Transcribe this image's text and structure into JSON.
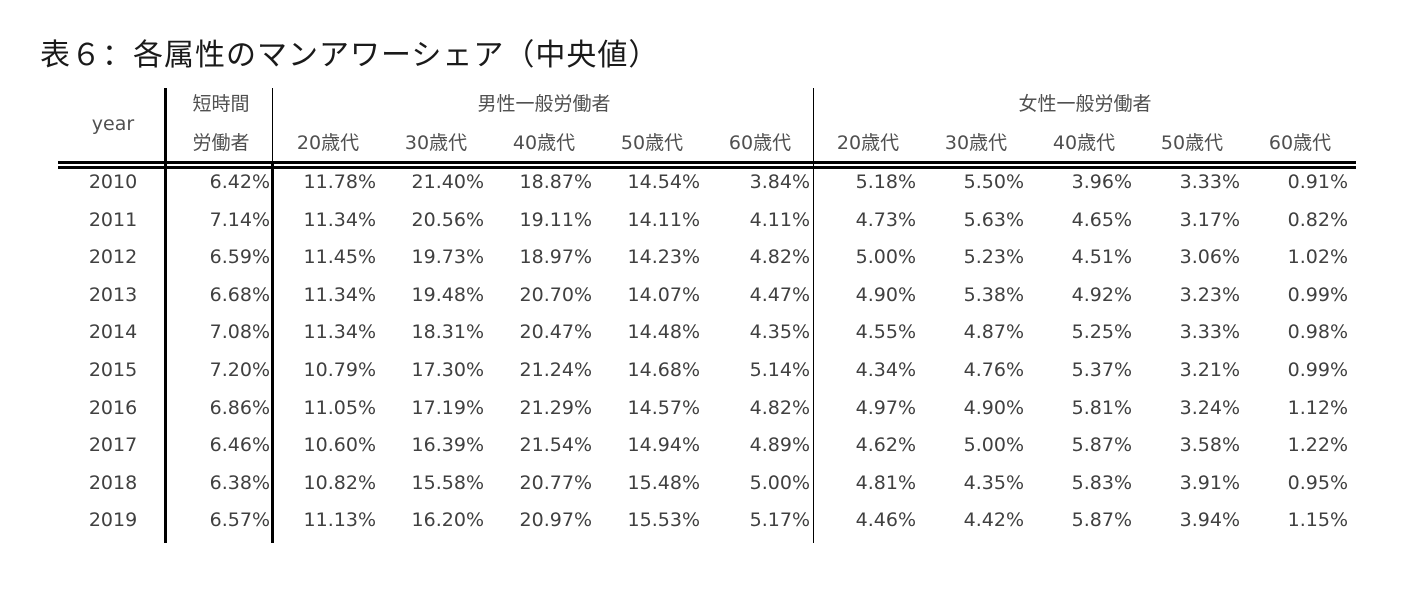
{
  "title": "表６：各属性のマンアワーシェア（中央値）",
  "table": {
    "header": {
      "year": "year",
      "short_time_line1": "短時間",
      "short_time_line2": "労働者",
      "male_group": "男性一般労働者",
      "female_group": "女性一般労働者",
      "age_columns": [
        "20歳代",
        "30歳代",
        "40歳代",
        "50歳代",
        "60歳代"
      ]
    },
    "rows": [
      {
        "year": "2010",
        "short": "6.42%",
        "male": [
          "11.78%",
          "21.40%",
          "18.87%",
          "14.54%",
          "3.84%"
        ],
        "female": [
          "5.18%",
          "5.50%",
          "3.96%",
          "3.33%",
          "0.91%"
        ]
      },
      {
        "year": "2011",
        "short": "7.14%",
        "male": [
          "11.34%",
          "20.56%",
          "19.11%",
          "14.11%",
          "4.11%"
        ],
        "female": [
          "4.73%",
          "5.63%",
          "4.65%",
          "3.17%",
          "0.82%"
        ]
      },
      {
        "year": "2012",
        "short": "6.59%",
        "male": [
          "11.45%",
          "19.73%",
          "18.97%",
          "14.23%",
          "4.82%"
        ],
        "female": [
          "5.00%",
          "5.23%",
          "4.51%",
          "3.06%",
          "1.02%"
        ]
      },
      {
        "year": "2013",
        "short": "6.68%",
        "male": [
          "11.34%",
          "19.48%",
          "20.70%",
          "14.07%",
          "4.47%"
        ],
        "female": [
          "4.90%",
          "5.38%",
          "4.92%",
          "3.23%",
          "0.99%"
        ]
      },
      {
        "year": "2014",
        "short": "7.08%",
        "male": [
          "11.34%",
          "18.31%",
          "20.47%",
          "14.48%",
          "4.35%"
        ],
        "female": [
          "4.55%",
          "4.87%",
          "5.25%",
          "3.33%",
          "0.98%"
        ]
      },
      {
        "year": "2015",
        "short": "7.20%",
        "male": [
          "10.79%",
          "17.30%",
          "21.24%",
          "14.68%",
          "5.14%"
        ],
        "female": [
          "4.34%",
          "4.76%",
          "5.37%",
          "3.21%",
          "0.99%"
        ]
      },
      {
        "year": "2016",
        "short": "6.86%",
        "male": [
          "11.05%",
          "17.19%",
          "21.29%",
          "14.57%",
          "4.82%"
        ],
        "female": [
          "4.97%",
          "4.90%",
          "5.81%",
          "3.24%",
          "1.12%"
        ]
      },
      {
        "year": "2017",
        "short": "6.46%",
        "male": [
          "10.60%",
          "16.39%",
          "21.54%",
          "14.94%",
          "4.89%"
        ],
        "female": [
          "4.62%",
          "5.00%",
          "5.87%",
          "3.58%",
          "1.22%"
        ]
      },
      {
        "year": "2018",
        "short": "6.38%",
        "male": [
          "10.82%",
          "15.58%",
          "20.77%",
          "15.48%",
          "5.00%"
        ],
        "female": [
          "4.81%",
          "4.35%",
          "5.83%",
          "3.91%",
          "0.95%"
        ]
      },
      {
        "year": "2019",
        "short": "6.57%",
        "male": [
          "11.13%",
          "16.20%",
          "20.97%",
          "15.53%",
          "5.17%"
        ],
        "female": [
          "4.46%",
          "4.42%",
          "5.87%",
          "3.94%",
          "1.15%"
        ]
      }
    ]
  }
}
